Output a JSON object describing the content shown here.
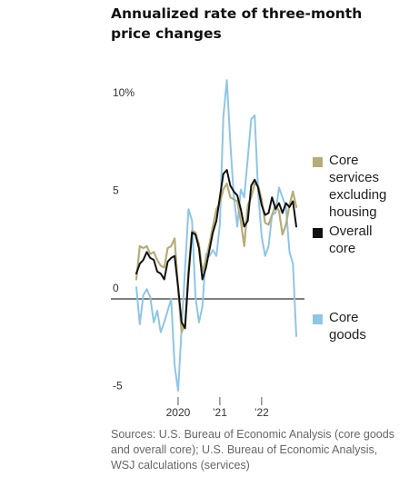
{
  "chart_data": {
    "type": "line",
    "title": "Annualized rate of three-month price changes",
    "y_tick_labels": [
      "10%",
      "5",
      "0",
      "-5"
    ],
    "y_ticks": [
      10,
      5,
      0,
      -5
    ],
    "ylim": [
      -5,
      11
    ],
    "x_tick_labels": [
      "2020",
      "’21",
      "’22"
    ],
    "x_ticks": [
      2020,
      2021,
      2022
    ],
    "xlim": [
      2019.0,
      2022.83
    ],
    "grid": false,
    "legend_position": "right",
    "series": [
      {
        "name": "Core services excluding housing",
        "color": "#b5ad78",
        "x": [
          2019.0,
          2019.083,
          2019.167,
          2019.25,
          2019.333,
          2019.417,
          2019.5,
          2019.583,
          2019.667,
          2019.75,
          2019.833,
          2019.917,
          2020.0,
          2020.083,
          2020.167,
          2020.25,
          2020.333,
          2020.417,
          2020.5,
          2020.583,
          2020.667,
          2020.75,
          2020.833,
          2020.917,
          2021.0,
          2021.083,
          2021.167,
          2021.25,
          2021.333,
          2021.417,
          2021.5,
          2021.583,
          2021.667,
          2021.75,
          2021.833,
          2021.917,
          2022.0,
          2022.083,
          2022.167,
          2022.25,
          2022.333,
          2022.417,
          2022.5,
          2022.583,
          2022.667,
          2022.75,
          2022.83
        ],
        "values": [
          1.0,
          2.7,
          2.6,
          2.7,
          2.3,
          2.4,
          2.0,
          1.7,
          1.6,
          2.6,
          2.7,
          3.1,
          0.5,
          -1.7,
          -1.3,
          1.5,
          3.5,
          3.4,
          2.8,
          1.4,
          2.0,
          2.8,
          3.7,
          4.6,
          4.9,
          5.6,
          5.9,
          5.2,
          5.1,
          5.0,
          4.0,
          2.7,
          4.8,
          5.2,
          5.9,
          5.8,
          5.1,
          3.9,
          3.8,
          4.3,
          4.8,
          4.5,
          3.3,
          3.8,
          4.8,
          5.5,
          4.7
        ]
      },
      {
        "name": "Overall core",
        "color": "#111111",
        "x": [
          2019.0,
          2019.083,
          2019.167,
          2019.25,
          2019.333,
          2019.417,
          2019.5,
          2019.583,
          2019.667,
          2019.75,
          2019.833,
          2019.917,
          2020.0,
          2020.083,
          2020.167,
          2020.25,
          2020.333,
          2020.417,
          2020.5,
          2020.583,
          2020.667,
          2020.75,
          2020.833,
          2020.917,
          2021.0,
          2021.083,
          2021.167,
          2021.25,
          2021.333,
          2021.417,
          2021.5,
          2021.583,
          2021.667,
          2021.75,
          2021.833,
          2021.917,
          2022.0,
          2022.083,
          2022.167,
          2022.25,
          2022.333,
          2022.417,
          2022.5,
          2022.583,
          2022.667,
          2022.75,
          2022.83
        ],
        "values": [
          1.3,
          1.8,
          2.0,
          2.4,
          2.1,
          2.0,
          1.4,
          1.3,
          1.0,
          1.9,
          2.1,
          2.2,
          0.6,
          -1.2,
          -1.5,
          1.2,
          3.4,
          3.3,
          2.6,
          1.0,
          1.6,
          2.5,
          3.4,
          4.0,
          5.2,
          6.4,
          6.6,
          5.8,
          5.5,
          5.3,
          4.6,
          3.7,
          4.0,
          5.8,
          6.1,
          5.7,
          4.8,
          4.3,
          4.4,
          5.2,
          4.6,
          4.9,
          4.4,
          4.9,
          4.7,
          5.0,
          3.7
        ]
      },
      {
        "name": "Core goods",
        "color": "#8ec6e6",
        "x": [
          2019.0,
          2019.083,
          2019.167,
          2019.25,
          2019.333,
          2019.417,
          2019.5,
          2019.583,
          2019.667,
          2019.75,
          2019.833,
          2019.917,
          2020.0,
          2020.083,
          2020.167,
          2020.25,
          2020.333,
          2020.417,
          2020.5,
          2020.583,
          2020.667,
          2020.75,
          2020.833,
          2020.917,
          2021.0,
          2021.083,
          2021.167,
          2021.25,
          2021.333,
          2021.417,
          2021.5,
          2021.583,
          2021.667,
          2021.75,
          2021.833,
          2021.917,
          2022.0,
          2022.083,
          2022.167,
          2022.25,
          2022.333,
          2022.417,
          2022.5,
          2022.583,
          2022.667,
          2022.75,
          2022.83
        ],
        "values": [
          0.6,
          -1.3,
          0.2,
          0.5,
          0.1,
          -1.2,
          -0.6,
          -1.7,
          -1.2,
          -0.6,
          0.0,
          -3.4,
          -4.7,
          -1.5,
          1.5,
          4.6,
          4.0,
          0.1,
          -1.2,
          -0.4,
          2.3,
          2.2,
          2.5,
          2.2,
          3.8,
          9.3,
          11.2,
          8.0,
          5.3,
          3.7,
          5.6,
          5.2,
          7.2,
          9.2,
          9.4,
          5.5,
          3.2,
          2.2,
          2.7,
          4.3,
          4.4,
          5.7,
          5.2,
          4.7,
          2.4,
          1.8,
          -1.9
        ]
      }
    ]
  },
  "sources": "Sources: U.S. Bureau of Economic Analysis (core goods and overall core); U.S. Bureau of Economic Analysis, WSJ calculations (services)"
}
